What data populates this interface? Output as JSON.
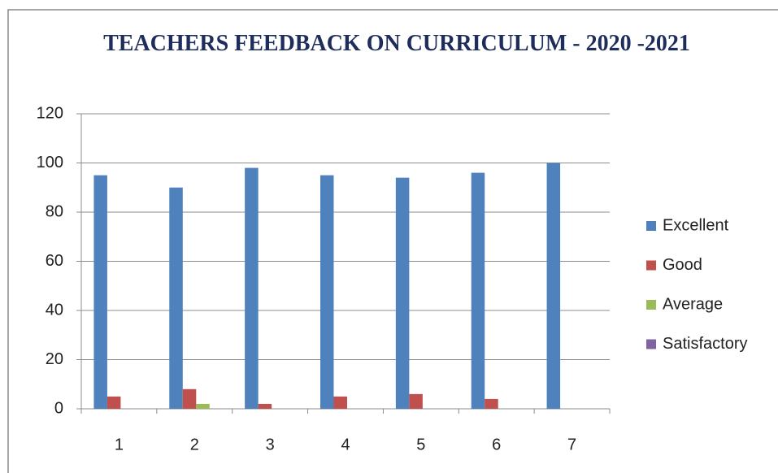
{
  "chart_data": {
    "type": "bar",
    "title": "TEACHERS FEEDBACK ON CURRICULUM - 2020 -2021",
    "categories": [
      "1",
      "2",
      "3",
      "4",
      "5",
      "6",
      "7"
    ],
    "series": [
      {
        "name": "Excellent",
        "color": "#4f81bd",
        "values": [
          95,
          90,
          98,
          95,
          94,
          96,
          100
        ]
      },
      {
        "name": "Good",
        "color": "#c0504d",
        "values": [
          5,
          8,
          2,
          5,
          6,
          4,
          0
        ]
      },
      {
        "name": "Average",
        "color": "#9bbb59",
        "values": [
          0,
          2,
          0,
          0,
          0,
          0,
          0
        ]
      },
      {
        "name": "Satisfactory",
        "color": "#8064a2",
        "values": [
          0,
          0,
          0,
          0,
          0,
          0,
          0
        ]
      }
    ],
    "ylim": [
      0,
      120
    ],
    "yticks": [
      0,
      20,
      40,
      60,
      80,
      100,
      120
    ],
    "grid": true,
    "legend": "right"
  }
}
